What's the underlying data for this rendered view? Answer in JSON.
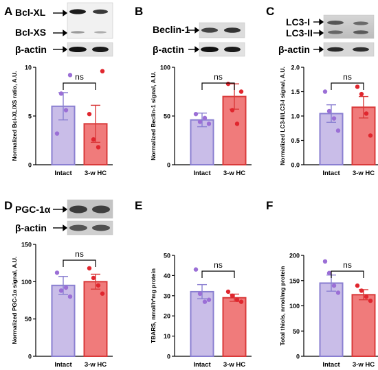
{
  "palette": {
    "intact_fill": "#c9bde8",
    "intact_edge": "#8a7fd1",
    "intact_dot": "#9b6fd6",
    "hc_fill": "#f07b7b",
    "hc_edge": "#d93a3a",
    "hc_dot": "#e0262e",
    "axis": "#000000"
  },
  "chart_data": [
    {
      "panel": "A",
      "type": "bar",
      "categories": [
        "Intact",
        "3-w HC"
      ],
      "series": [
        {
          "values": [
            6.0,
            4.2
          ],
          "sem": [
            1.4,
            1.9
          ],
          "points": [
            [
              3.2,
              7.3,
              5.6,
              9.2
            ],
            [
              5.2,
              2.6,
              1.8,
              9.6
            ]
          ]
        }
      ],
      "ylabel": "Normalized Bcl-XL/XS ratio, A.U.",
      "ylim": [
        0,
        10
      ],
      "yticks": [
        0,
        5,
        10
      ],
      "significance": "ns",
      "blot": {
        "bands": [
          "Bcl-XL",
          "Bcl-XS"
        ],
        "loading": "β-actin"
      }
    },
    {
      "panel": "B",
      "type": "bar",
      "categories": [
        "Intact",
        "3-w HC"
      ],
      "series": [
        {
          "values": [
            46,
            70
          ],
          "sem": [
            7,
            13
          ],
          "points": [
            [
              52,
              44,
              48,
              42
            ],
            [
              83,
              56,
              42,
              75
            ]
          ]
        }
      ],
      "ylabel": "Normalized Beclin-1 signal, A.U.",
      "ylim": [
        0,
        100
      ],
      "yticks": [
        0,
        50,
        100
      ],
      "significance": "ns",
      "blot": {
        "bands": [
          "Beclin-1"
        ],
        "loading": "β-actin"
      }
    },
    {
      "panel": "C",
      "type": "bar",
      "categories": [
        "Intact",
        "3-w HC"
      ],
      "series": [
        {
          "values": [
            1.05,
            1.18
          ],
          "sem": [
            0.18,
            0.22
          ],
          "points": [
            [
              1.5,
              1.1,
              0.95,
              0.7
            ],
            [
              1.6,
              1.45,
              1.05,
              0.6
            ]
          ]
        }
      ],
      "ylabel": "Normalized LC3-II/LC3-I signal, A.U.",
      "ylim": [
        0,
        2.0
      ],
      "yticks": [
        0.0,
        0.5,
        1.0,
        1.5,
        2.0
      ],
      "significance": "ns",
      "blot": {
        "bands": [
          "LC3-I",
          "LC3-II"
        ],
        "loading": "β-actin"
      }
    },
    {
      "panel": "D",
      "type": "bar",
      "categories": [
        "Intact",
        "3-w HC"
      ],
      "series": [
        {
          "values": [
            95,
            100
          ],
          "sem": [
            12,
            10
          ],
          "points": [
            [
              112,
              88,
              92,
              80
            ],
            [
              118,
              105,
              95,
              84
            ]
          ]
        }
      ],
      "ylabel": "Normalized PGC-1α signal, A.U.",
      "ylim": [
        0,
        150
      ],
      "yticks": [
        0,
        50,
        100,
        150
      ],
      "significance": "ns",
      "blot": {
        "bands": [
          "PGC-1α"
        ],
        "loading": "β-actin"
      }
    },
    {
      "panel": "E",
      "type": "bar",
      "categories": [
        "Intact",
        "3-w HC"
      ],
      "series": [
        {
          "values": [
            32,
            29
          ],
          "sem": [
            3.5,
            1.8
          ],
          "points": [
            [
              43,
              31,
              27,
              28
            ],
            [
              32,
              30,
              28,
              27
            ]
          ]
        }
      ],
      "ylabel": "TBARS, nmol/h*mg protein",
      "ylim": [
        0,
        50
      ],
      "yticks": [
        0,
        10,
        20,
        30,
        40,
        50
      ],
      "significance": "ns"
    },
    {
      "panel": "F",
      "type": "bar",
      "categories": [
        "Intact",
        "3-w HC"
      ],
      "series": [
        {
          "values": [
            145,
            122
          ],
          "sem": [
            16,
            10
          ],
          "points": [
            [
              188,
              165,
              140,
              126
            ],
            [
              140,
              130,
              118,
              110
            ]
          ]
        }
      ],
      "ylabel": "Total thiols, nmol/mg protein",
      "ylim": [
        0,
        200
      ],
      "yticks": [
        0,
        50,
        100,
        150,
        200
      ],
      "significance": "ns"
    }
  ]
}
